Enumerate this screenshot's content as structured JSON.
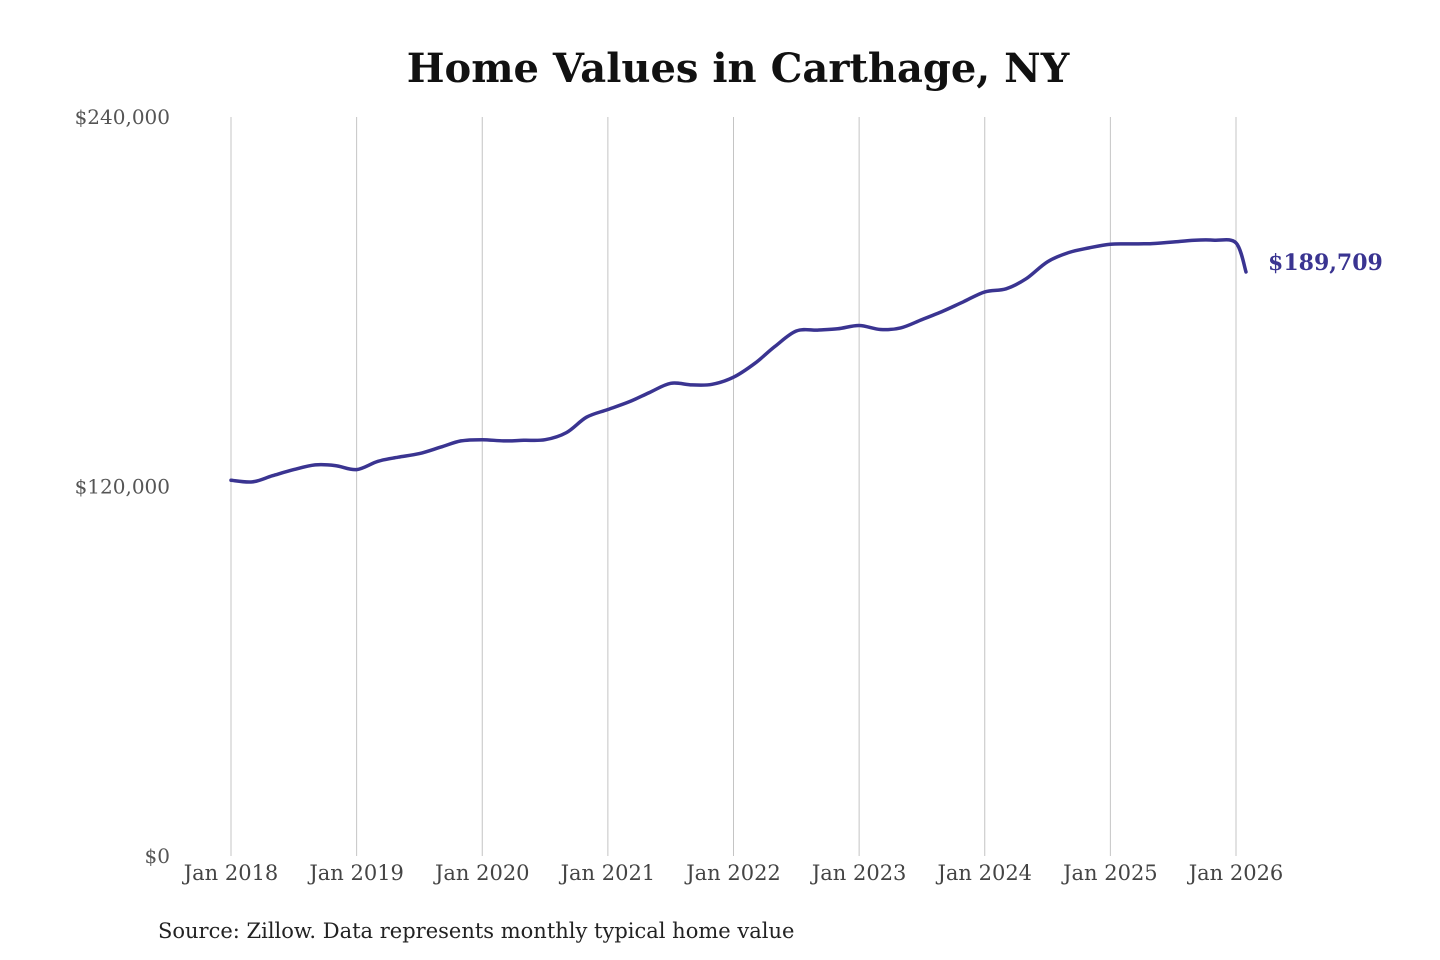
{
  "chart_data": {
    "type": "line",
    "title": "Home Values in Carthage, NY",
    "xlabel": "",
    "ylabel": "",
    "ylim": [
      0,
      240000
    ],
    "xlim": [
      2018.0,
      2026.0
    ],
    "y_ticks": [
      {
        "value": 0,
        "label": "$0"
      },
      {
        "value": 120000,
        "label": "$120,000"
      },
      {
        "value": 240000,
        "label": "$240,000"
      }
    ],
    "x_ticks": [
      {
        "value": 2018,
        "label": "Jan 2018"
      },
      {
        "value": 2019,
        "label": "Jan 2019"
      },
      {
        "value": 2020,
        "label": "Jan 2020"
      },
      {
        "value": 2021,
        "label": "Jan 2021"
      },
      {
        "value": 2022,
        "label": "Jan 2022"
      },
      {
        "value": 2023,
        "label": "Jan 2023"
      },
      {
        "value": 2024,
        "label": "Jan 2024"
      },
      {
        "value": 2025,
        "label": "Jan 2025"
      },
      {
        "value": 2026,
        "label": "Jan 2026"
      }
    ],
    "grid": {
      "vertical": true,
      "horizontal": false
    },
    "series": [
      {
        "color": "#3a3491",
        "end_label": "$189,709",
        "x": [
          2018.0,
          2018.17,
          2018.33,
          2018.5,
          2018.67,
          2018.83,
          2019.0,
          2019.17,
          2019.33,
          2019.5,
          2019.67,
          2019.83,
          2020.0,
          2020.17,
          2020.33,
          2020.5,
          2020.67,
          2020.83,
          2021.0,
          2021.17,
          2021.33,
          2021.5,
          2021.67,
          2021.83,
          2022.0,
          2022.17,
          2022.33,
          2022.5,
          2022.67,
          2022.83,
          2023.0,
          2023.17,
          2023.33,
          2023.5,
          2023.67,
          2023.83,
          2024.0,
          2024.17,
          2024.33,
          2024.5,
          2024.67,
          2024.83,
          2025.0,
          2025.17,
          2025.33,
          2025.5,
          2025.67,
          2025.83,
          2026.0,
          2026.08
        ],
        "values": [
          122000,
          121500,
          123500,
          125500,
          127000,
          126800,
          125500,
          128200,
          129500,
          130700,
          132800,
          134800,
          135200,
          134800,
          135000,
          135200,
          137500,
          142500,
          145000,
          147500,
          150500,
          153500,
          153000,
          153200,
          155500,
          160000,
          165500,
          170500,
          170800,
          171200,
          172300,
          171000,
          171500,
          174200,
          177000,
          180000,
          183200,
          184200,
          187500,
          193000,
          196000,
          197500,
          198700,
          198800,
          198900,
          199400,
          200000,
          200000,
          199100,
          189709
        ]
      }
    ],
    "source": "Source: Zillow. Data represents monthly typical home value"
  }
}
